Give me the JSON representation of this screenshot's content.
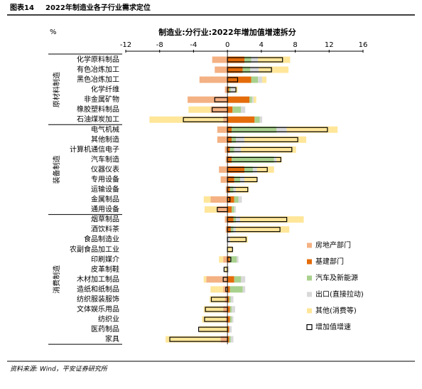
{
  "header": {
    "label": "图表14",
    "title": "2022年制造业各子行业需求定位"
  },
  "source": "资料来源: Wind，平安证券研究所",
  "chart_data": {
    "type": "bar",
    "title": "制造业:分行业:2022年增加值增速拆分",
    "unit": "%",
    "groups": [
      {
        "name": "原材料制造",
        "categories": [
          "化学原料制品",
          "有色冶炼加工",
          "黑色冶炼加工",
          "化学纤维",
          "非金属矿物",
          "橡胶塑料制品",
          "石油煤炭加工"
        ]
      },
      {
        "name": "装备制造",
        "categories": [
          "电气机械",
          "其他制造",
          "计算机通信电子",
          "汽车制造",
          "仪器仪表",
          "专用设备",
          "运输设备",
          "金属制品",
          "通用设备"
        ]
      },
      {
        "name": "消费制造",
        "categories": [
          "烟草制品",
          "酒饮料茶",
          "食品制造业",
          "农副食品加工业",
          "印刷媒介",
          "皮革制鞋",
          "木材加工制品",
          "造纸和纸制品",
          "纺织服装服饰",
          "文体娱乐用品",
          "纺织业",
          "医药制品",
          "家具"
        ]
      }
    ],
    "series": [
      {
        "name": "房地产部门",
        "color": "#f4b183",
        "values": [
          -1.8,
          -1.5,
          -3.3,
          -0.3,
          -4.7,
          -2.0,
          -0.5,
          -1.2,
          -1.2,
          -0.3,
          -0.2,
          -1.0,
          -0.8,
          -0.2,
          -2.0,
          -1.2,
          -0.3,
          -0.2,
          0,
          0,
          -0.5,
          0,
          -2.5,
          -0.5,
          -0.3,
          -0.5,
          -0.2,
          0,
          -0.8
        ]
      },
      {
        "name": "基建部门",
        "color": "#e46c0a",
        "values": [
          2.0,
          1.8,
          2.8,
          0.2,
          2.6,
          0.6,
          3.2,
          0.5,
          0.5,
          0.3,
          0.5,
          2.0,
          0.8,
          0.3,
          0.8,
          0.5,
          0.7,
          0.4,
          0,
          0,
          0.3,
          0,
          0.8,
          0.3,
          0.2,
          0.3,
          0.3,
          0.2,
          0.2
        ]
      },
      {
        "name": "汽车及新能源",
        "color": "#a9d18e",
        "values": [
          0.8,
          0.9,
          0.8,
          0.2,
          0.3,
          1.0,
          0.6,
          5.3,
          0.5,
          0.5,
          5.0,
          1.0,
          0.7,
          0.4,
          0.5,
          0.3,
          0.3,
          0.3,
          0,
          0,
          0.8,
          0,
          0.8,
          1.5,
          0.2,
          0.2,
          0.2,
          0,
          0.2
        ]
      },
      {
        "name": "出口(直接拉动)",
        "color": "#d9d9d9",
        "values": [
          0.8,
          1.0,
          0.5,
          0.5,
          0.2,
          0.5,
          0.3,
          1.2,
          1.0,
          0.8,
          0.3,
          0.5,
          0.5,
          0.3,
          0.4,
          0.2,
          0.5,
          0.3,
          0.3,
          0,
          0.2,
          0.2,
          0.5,
          0.3,
          0.3,
          0.4,
          0.2,
          0.3,
          0.3
        ]
      },
      {
        "name": "其他(消费等)",
        "color": "#ffe699",
        "values": [
          3.8,
          3.5,
          0.5,
          0.3,
          0.3,
          -2.6,
          -8.7,
          6.0,
          7.3,
          6.5,
          0.6,
          2.0,
          1.5,
          1.5,
          -0.8,
          -1.5,
          7.5,
          6.3,
          2.1,
          0.6,
          -0.5,
          -0.3,
          -0.3,
          -1.5,
          -1.8,
          -2.3,
          -2.8,
          -3.3,
          -6.5
        ]
      },
      {
        "name": "增加值增速",
        "color": "#000000",
        "outline": true,
        "values": [
          6.5,
          5.2,
          1.2,
          1.0,
          -1.5,
          -1.8,
          -5.2,
          11.8,
          8.3,
          7.6,
          6.3,
          4.7,
          3.5,
          2.4,
          0.3,
          -1.2,
          7.0,
          6.2,
          2.2,
          0.6,
          0.4,
          -0.4,
          -0.5,
          -0.2,
          -1.9,
          -2.6,
          -2.7,
          -3.4,
          -6.8
        ]
      }
    ],
    "xlim": [
      -12,
      16
    ],
    "xticks": [
      -12,
      -8,
      -4,
      0,
      4,
      8,
      12,
      16
    ]
  }
}
